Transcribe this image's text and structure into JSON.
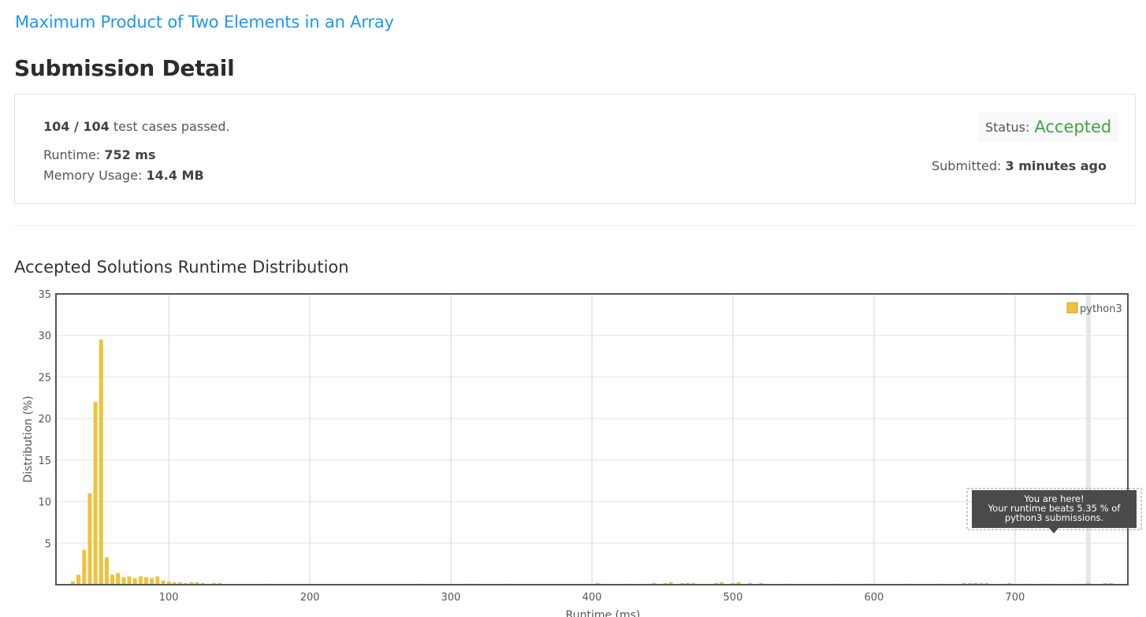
{
  "problem_title": "Maximum Product of Two Elements in an Array",
  "page_title": "Submission Detail",
  "summary": {
    "cases_passed": "104 / 104",
    "cases_suffix": "test cases passed.",
    "runtime_label": "Runtime:",
    "runtime_value": "752 ms",
    "memory_label": "Memory Usage:",
    "memory_value": "14.4 MB",
    "status_label": "Status:",
    "status_value": "Accepted",
    "submitted_label": "Submitted:",
    "submitted_value": "3 minutes ago"
  },
  "colors": {
    "link": "#2196f3",
    "accepted": "#43a047",
    "bar": "#f0c13b",
    "tooltip": "#4a4a4a"
  },
  "chart_heading": "Accepted Solutions Runtime Distribution",
  "chart_data": {
    "type": "bar",
    "title": "",
    "xlabel": "Runtime (ms)",
    "ylabel": "Distribution (%)",
    "xlim": [
      20,
      780
    ],
    "ylim": [
      0,
      35
    ],
    "xticks": [
      100,
      200,
      300,
      400,
      500,
      600,
      700
    ],
    "yticks": [
      5,
      10,
      15,
      20,
      25,
      30,
      35
    ],
    "grid": true,
    "legend": "top-right",
    "series": [
      {
        "name": "python3",
        "x": [
          32,
          36,
          40,
          44,
          48,
          52,
          56,
          60,
          64,
          68,
          72,
          76,
          80,
          84,
          88,
          92,
          96,
          100,
          104,
          108,
          112,
          116,
          120,
          124,
          128,
          132,
          136,
          172,
          276,
          312,
          316,
          340,
          372,
          404,
          424,
          440,
          444,
          452,
          456,
          464,
          468,
          472,
          488,
          492,
          500,
          504,
          512,
          520,
          524,
          536,
          540,
          548,
          572,
          596,
          616,
          624,
          648,
          664,
          668,
          672,
          676,
          680,
          684,
          696,
          700,
          708,
          712,
          720,
          728,
          740,
          752,
          764,
          768
        ],
        "values": [
          0.4,
          1.2,
          4.2,
          11.0,
          22.0,
          29.5,
          3.3,
          1.2,
          1.4,
          0.9,
          1.0,
          0.8,
          1.0,
          0.9,
          0.8,
          1.0,
          0.5,
          0.4,
          0.3,
          0.3,
          0.2,
          0.3,
          0.3,
          0.2,
          0.1,
          0.2,
          0.2,
          0.1,
          0.1,
          0.1,
          0.1,
          0.1,
          0.1,
          0.2,
          0.1,
          0.1,
          0.2,
          0.2,
          0.3,
          0.2,
          0.2,
          0.2,
          0.2,
          0.3,
          0.2,
          0.3,
          0.2,
          0.2,
          0.1,
          0.1,
          0.1,
          0.1,
          0.1,
          0.1,
          0.1,
          0.1,
          0.1,
          0.2,
          0.2,
          0.2,
          0.2,
          0.2,
          0.1,
          0.2,
          0.1,
          0.1,
          0.1,
          0.1,
          0.1,
          0.1,
          0.2,
          0.2,
          0.2
        ]
      }
    ],
    "highlight": {
      "x": 752,
      "tooltip_lines": [
        "You are here!",
        "Your runtime beats 5.35 % of",
        "python3 submissions."
      ]
    }
  }
}
